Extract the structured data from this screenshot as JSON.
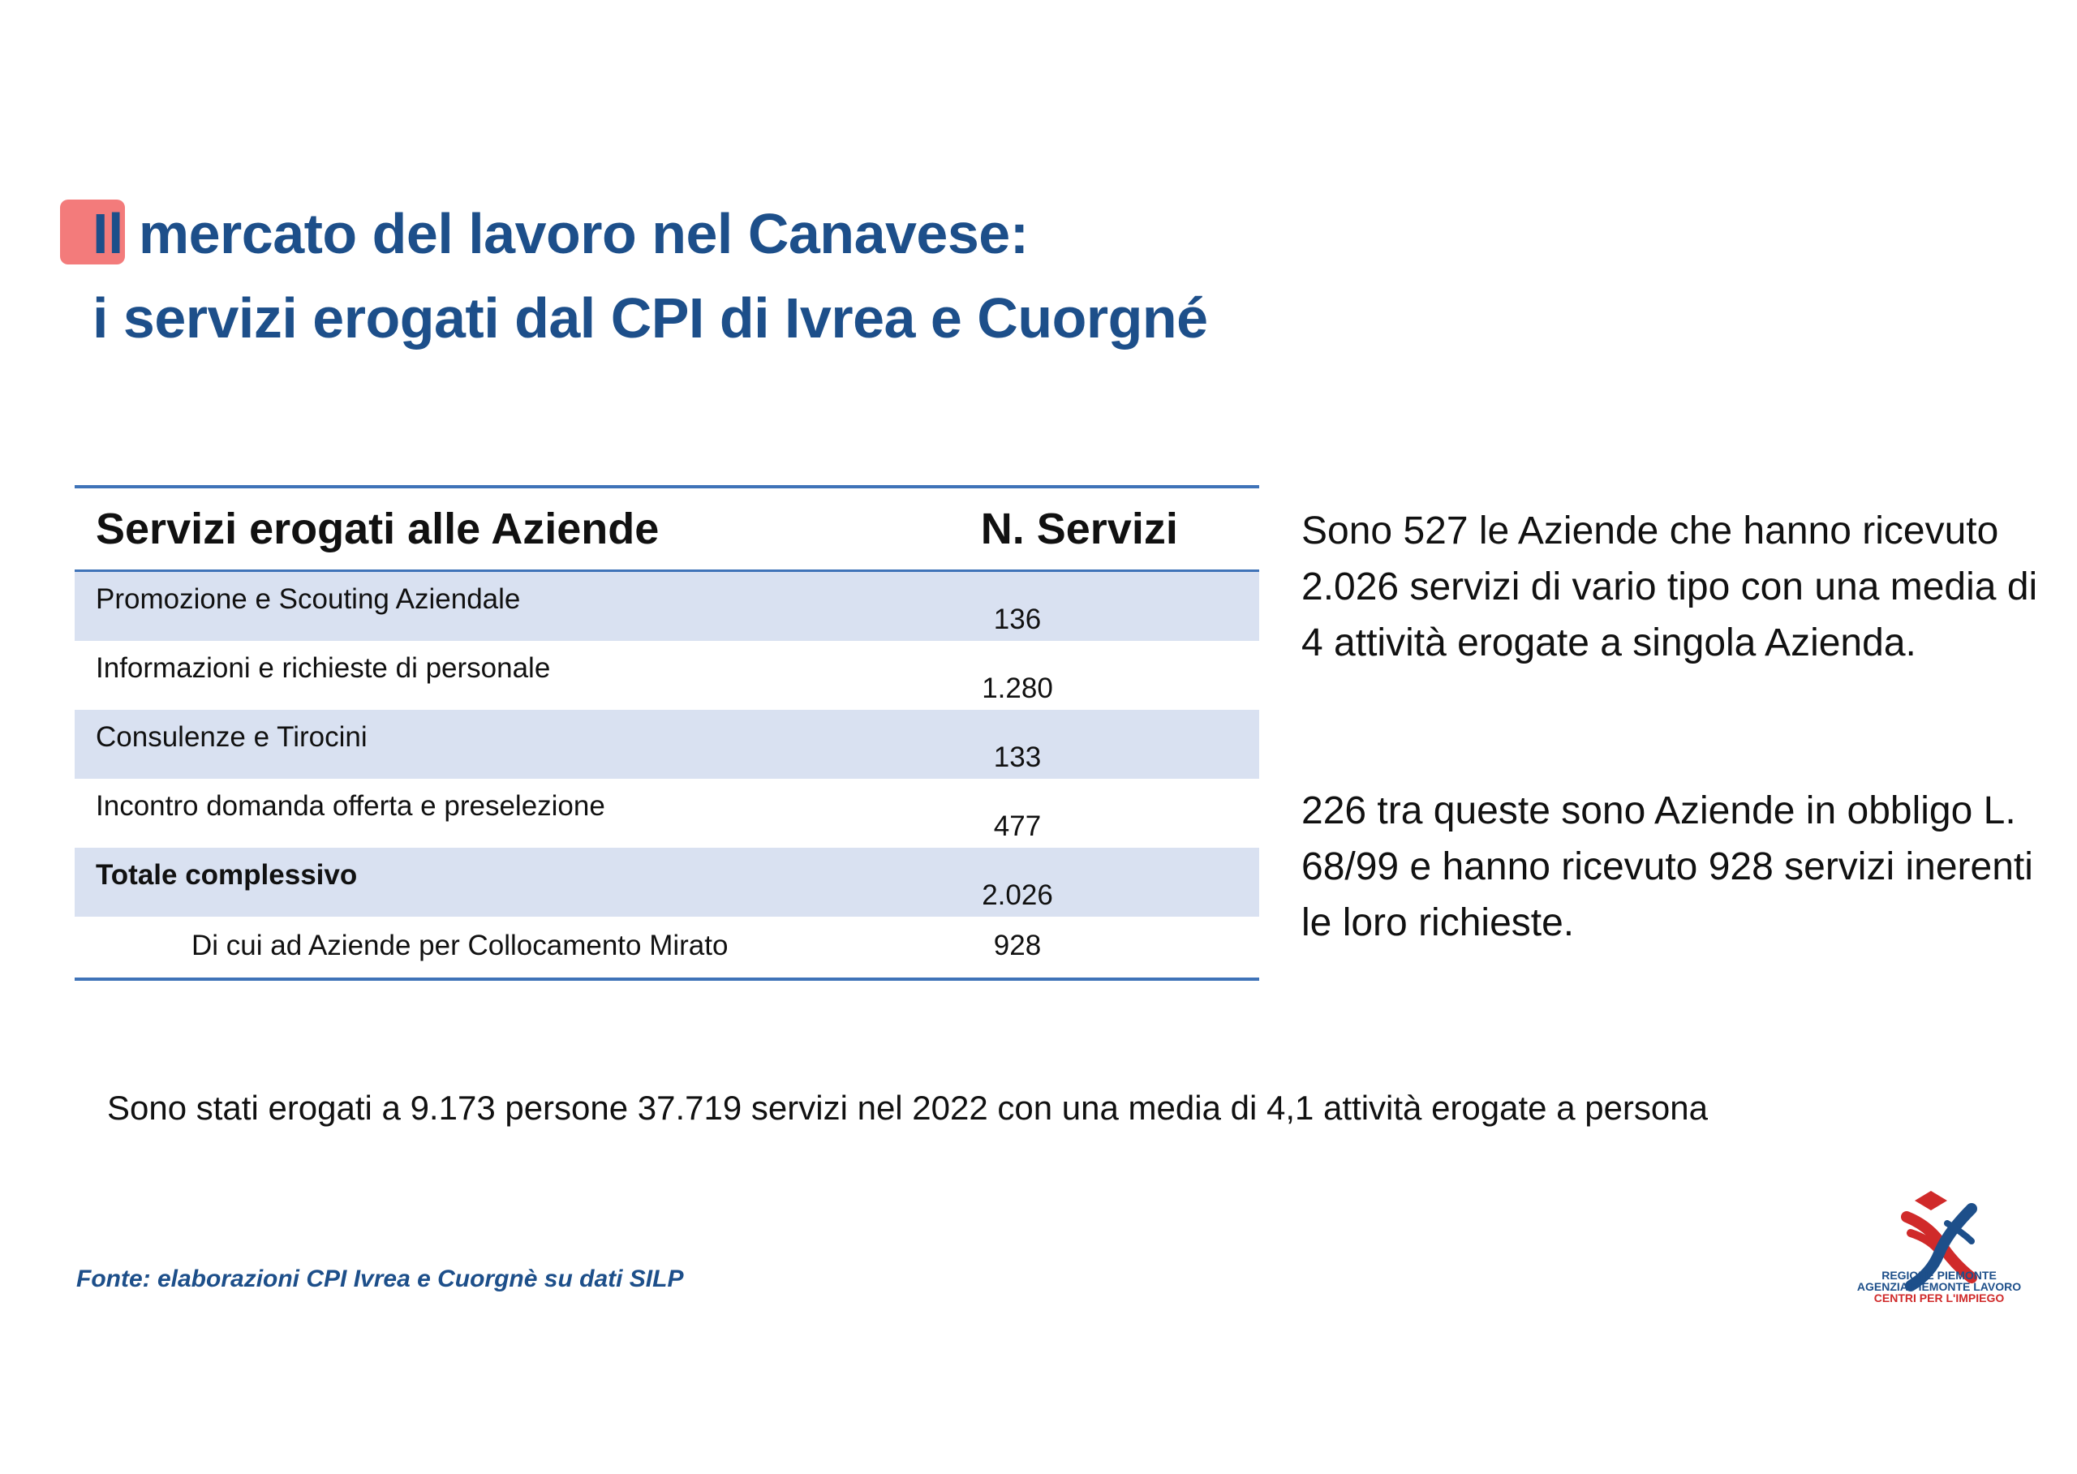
{
  "title": {
    "line1": "Il mercato del lavoro nel Canavese:",
    "line2": "i servizi erogati dal CPI di Ivrea e Cuorgné"
  },
  "table": {
    "headers": [
      "Servizi erogati alle Aziende",
      "N. Servizi"
    ],
    "rows": [
      {
        "label": "Promozione e Scouting Aziendale",
        "value": "136"
      },
      {
        "label": "Informazioni e richieste di personale",
        "value": "1.280"
      },
      {
        "label": "Consulenze e Tirocini",
        "value": "133"
      },
      {
        "label": "Incontro domanda offerta e preselezione",
        "value": "477"
      },
      {
        "label": "Totale complessivo",
        "value": "2.026"
      },
      {
        "label": "Di cui ad Aziende per Collocamento Mirato",
        "value": "928"
      }
    ]
  },
  "side": {
    "paragraph1": "Sono 527 le Aziende che hanno ricevuto 2.026 servizi di vario tipo con una media di 4 attività erogate a singola Azienda.",
    "paragraph2": "226 tra queste sono Aziende in obbligo L. 68/99 e hanno ricevuto 928 servizi inerenti le loro richieste."
  },
  "bottom_text": "Sono stati erogati a 9.173 persone 37.719 servizi nel 2022 con una media di 4,1 attività erogate a persona",
  "source": "Fonte: elaborazioni CPI Ivrea e Cuorgnè su dati SILP",
  "logo": {
    "icon": "regione-piemonte-logo",
    "line1": "REGIONE PIEMONTE",
    "line2": "AGENZIA PIEMONTE LAVORO",
    "line3": "CENTRI PER L'IMPIEGO"
  },
  "colors": {
    "title": "#1d4f8a",
    "accent": "#f26d6d",
    "table_rule": "#3f73b8",
    "row_shade": "#d9e1f1"
  }
}
